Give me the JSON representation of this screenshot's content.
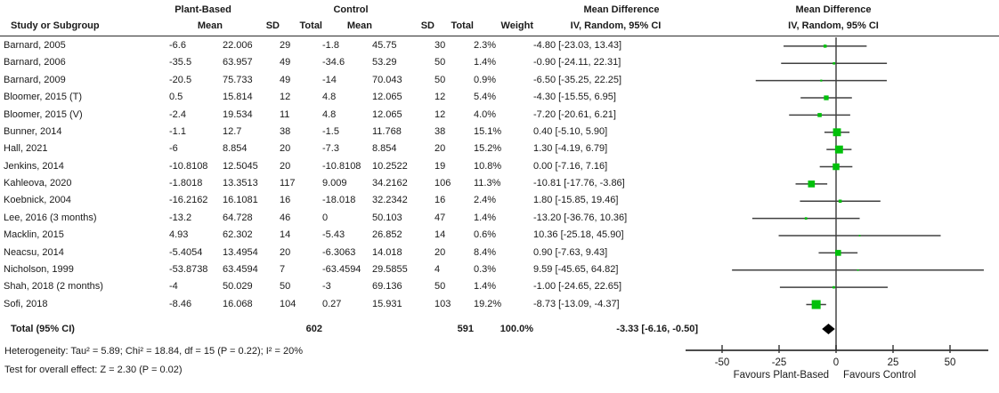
{
  "header": {
    "study_col": "Study or Subgroup",
    "groups": {
      "treatment": "Plant-Based",
      "control": "Control"
    },
    "mean": "Mean",
    "sd": "SD",
    "total": "Total",
    "weight": "Weight",
    "md_title": "Mean Difference",
    "md_method": "IV, Random, 95% CI"
  },
  "colors": {
    "marker_green": "#00c00a",
    "ci_line": "#404040",
    "zero_line": "#737373",
    "axis": "#333333",
    "diamond": "#000000"
  },
  "chart_data": {
    "type": "forest",
    "effect_measure": "Mean Difference",
    "model": "IV, Random, 95% CI",
    "axis": {
      "ticks": [
        -50,
        -25,
        0,
        25,
        50
      ],
      "xlim": [
        -66,
        72
      ],
      "left_label": "Favours Plant-Based",
      "right_label": "Favours Control"
    },
    "studies": [
      {
        "name": "Barnard, 2005",
        "t_mean": -6.6,
        "t_sd": 22.006,
        "t_n": 29,
        "c_mean": -1.8,
        "c_sd": 45.75,
        "c_n": 30,
        "weight": "2.3%",
        "weight_val": 2.3,
        "est": -4.8,
        "lo": -23.03,
        "hi": 13.43,
        "ci_text": "-4.80 [-23.03, 13.43]"
      },
      {
        "name": "Barnard, 2006",
        "t_mean": -35.5,
        "t_sd": 63.957,
        "t_n": 49,
        "c_mean": -34.6,
        "c_sd": 53.29,
        "c_n": 50,
        "weight": "1.4%",
        "weight_val": 1.4,
        "est": -0.9,
        "lo": -24.11,
        "hi": 22.31,
        "ci_text": "-0.90 [-24.11, 22.31]"
      },
      {
        "name": "Barnard, 2009",
        "t_mean": -20.5,
        "t_sd": 75.733,
        "t_n": 49,
        "c_mean": -14,
        "c_sd": 70.043,
        "c_n": 50,
        "weight": "0.9%",
        "weight_val": 0.9,
        "est": -6.5,
        "lo": -35.25,
        "hi": 22.25,
        "ci_text": "-6.50 [-35.25, 22.25]"
      },
      {
        "name": "Bloomer, 2015 (T)",
        "t_mean": 0.5,
        "t_sd": 15.814,
        "t_n": 12,
        "c_mean": 4.8,
        "c_sd": 12.065,
        "c_n": 12,
        "weight": "5.4%",
        "weight_val": 5.4,
        "est": -4.3,
        "lo": -15.55,
        "hi": 6.95,
        "ci_text": "-4.30 [-15.55, 6.95]"
      },
      {
        "name": "Bloomer, 2015 (V)",
        "t_mean": -2.4,
        "t_sd": 19.534,
        "t_n": 11,
        "c_mean": 4.8,
        "c_sd": 12.065,
        "c_n": 12,
        "weight": "4.0%",
        "weight_val": 4.0,
        "est": -7.2,
        "lo": -20.61,
        "hi": 6.21,
        "ci_text": "-7.20 [-20.61, 6.21]"
      },
      {
        "name": "Bunner, 2014",
        "t_mean": -1.1,
        "t_sd": 12.7,
        "t_n": 38,
        "c_mean": -1.5,
        "c_sd": 11.768,
        "c_n": 38,
        "weight": "15.1%",
        "weight_val": 15.1,
        "est": 0.4,
        "lo": -5.1,
        "hi": 5.9,
        "ci_text": "0.40 [-5.10, 5.90]"
      },
      {
        "name": "Hall, 2021",
        "t_mean": -6,
        "t_sd": 8.854,
        "t_n": 20,
        "c_mean": -7.3,
        "c_sd": 8.854,
        "c_n": 20,
        "weight": "15.2%",
        "weight_val": 15.2,
        "est": 1.3,
        "lo": -4.19,
        "hi": 6.79,
        "ci_text": "1.30 [-4.19, 6.79]"
      },
      {
        "name": "Jenkins, 2014",
        "t_mean": -10.8108,
        "t_sd": 12.5045,
        "t_n": 20,
        "c_mean": -10.8108,
        "c_sd": 10.2522,
        "c_n": 19,
        "weight": "10.8%",
        "weight_val": 10.8,
        "est": 0.0,
        "lo": -7.16,
        "hi": 7.16,
        "ci_text": "0.00 [-7.16, 7.16]"
      },
      {
        "name": "Kahleova, 2020",
        "t_mean": -1.8018,
        "t_sd": 13.3513,
        "t_n": 117,
        "c_mean": 9.009,
        "c_sd": 34.2162,
        "c_n": 106,
        "weight": "11.3%",
        "weight_val": 11.3,
        "est": -10.81,
        "lo": -17.76,
        "hi": -3.86,
        "ci_text": "-10.81 [-17.76, -3.86]"
      },
      {
        "name": "Koebnick, 2004",
        "t_mean": -16.2162,
        "t_sd": 16.1081,
        "t_n": 16,
        "c_mean": -18.018,
        "c_sd": 32.2342,
        "c_n": 16,
        "weight": "2.4%",
        "weight_val": 2.4,
        "est": 1.8,
        "lo": -15.85,
        "hi": 19.46,
        "ci_text": "1.80 [-15.85, 19.46]"
      },
      {
        "name": "Lee, 2016 (3 months)",
        "t_mean": -13.2,
        "t_sd": 64.728,
        "t_n": 46,
        "c_mean": 0,
        "c_sd": 50.103,
        "c_n": 47,
        "weight": "1.4%",
        "weight_val": 1.4,
        "est": -13.2,
        "lo": -36.76,
        "hi": 10.36,
        "ci_text": "-13.20 [-36.76, 10.36]"
      },
      {
        "name": "Macklin, 2015",
        "t_mean": 4.93,
        "t_sd": 62.302,
        "t_n": 14,
        "c_mean": -5.43,
        "c_sd": 26.852,
        "c_n": 14,
        "weight": "0.6%",
        "weight_val": 0.6,
        "est": 10.36,
        "lo": -25.18,
        "hi": 45.9,
        "ci_text": "10.36 [-25.18, 45.90]"
      },
      {
        "name": "Neacsu, 2014",
        "t_mean": -5.4054,
        "t_sd": 13.4954,
        "t_n": 20,
        "c_mean": -6.3063,
        "c_sd": 14.018,
        "c_n": 20,
        "weight": "8.4%",
        "weight_val": 8.4,
        "est": 0.9,
        "lo": -7.63,
        "hi": 9.43,
        "ci_text": "0.90 [-7.63, 9.43]"
      },
      {
        "name": "Nicholson, 1999",
        "t_mean": -53.8738,
        "t_sd": 63.4594,
        "t_n": 7,
        "c_mean": -63.4594,
        "c_sd": 29.5855,
        "c_n": 4,
        "weight": "0.3%",
        "weight_val": 0.3,
        "est": 9.59,
        "lo": -45.65,
        "hi": 64.82,
        "ci_text": "9.59 [-45.65, 64.82]"
      },
      {
        "name": "Shah, 2018 (2 months)",
        "t_mean": -4,
        "t_sd": 50.029,
        "t_n": 50,
        "c_mean": -3,
        "c_sd": 69.136,
        "c_n": 50,
        "weight": "1.4%",
        "weight_val": 1.4,
        "est": -1.0,
        "lo": -24.65,
        "hi": 22.65,
        "ci_text": "-1.00 [-24.65, 22.65]"
      },
      {
        "name": "Sofi, 2018",
        "t_mean": -8.46,
        "t_sd": 16.068,
        "t_n": 104,
        "c_mean": 0.27,
        "c_sd": 15.931,
        "c_n": 103,
        "weight": "19.2%",
        "weight_val": 19.2,
        "est": -8.73,
        "lo": -13.09,
        "hi": -4.37,
        "ci_text": "-8.73 [-13.09, -4.37]"
      }
    ],
    "total": {
      "label": "Total (95% CI)",
      "t_n": 602,
      "c_n": 591,
      "weight": "100.0%",
      "est": -3.33,
      "lo": -6.16,
      "hi": -0.5,
      "ci_text": "-3.33 [-6.16, -0.50]"
    },
    "heterogeneity": "Heterogeneity: Tau² = 5.89; Chi² = 18.84, df = 15 (P = 0.22); I² = 20%",
    "overall_effect": "Test for overall effect: Z = 2.30 (P = 0.02)"
  }
}
